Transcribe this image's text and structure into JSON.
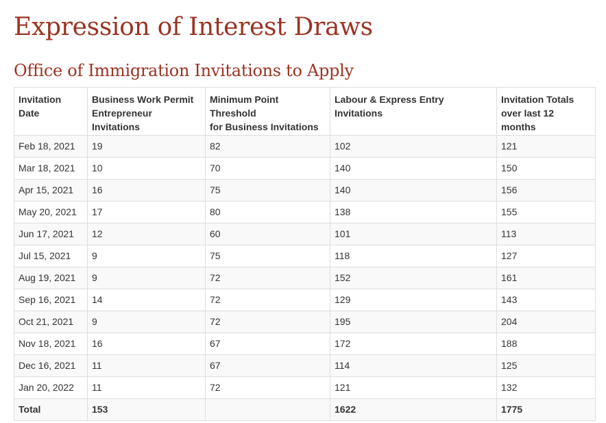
{
  "heading": "Expression of Interest Draws",
  "subheading": "Office of Immigration Invitations to Apply",
  "table": {
    "columns": [
      [
        "Invitation",
        "Date"
      ],
      [
        "Business Work Permit",
        "Entrepreneur",
        "Invitations"
      ],
      [
        "Minimum Point",
        "Threshold",
        "for Business Invitations"
      ],
      [
        "Labour & Express Entry",
        "Invitations"
      ],
      [
        "Invitation Totals",
        "over last 12",
        "months"
      ]
    ],
    "rows": [
      [
        "Feb 18, 2021",
        "19",
        "82",
        "102",
        "121"
      ],
      [
        "Mar 18, 2021",
        "10",
        "70",
        "140",
        "150"
      ],
      [
        "Apr 15, 2021",
        "16",
        "75",
        "140",
        "156"
      ],
      [
        "May 20, 2021",
        "17",
        "80",
        "138",
        "155"
      ],
      [
        "Jun 17, 2021",
        "12",
        "60",
        "101",
        "113"
      ],
      [
        "Jul 15, 2021",
        "9",
        "75",
        "118",
        "127"
      ],
      [
        "Aug 19, 2021",
        "9",
        "72",
        "152",
        "161"
      ],
      [
        "Sep 16, 2021",
        "14",
        "72",
        "129",
        "143"
      ],
      [
        "Oct 21, 2021",
        "9",
        "72",
        "195",
        "204"
      ],
      [
        "Nov 18, 2021",
        "16",
        "67",
        "172",
        "188"
      ],
      [
        "Dec 16, 2021",
        "11",
        "67",
        "114",
        "125"
      ],
      [
        "Jan 20, 2022",
        "11",
        "72",
        "121",
        "132"
      ]
    ],
    "total": [
      "Total",
      "153",
      "",
      "1622",
      "1775"
    ]
  },
  "colors": {
    "heading": "#9b3322",
    "text": "#333333",
    "border": "#dddddd",
    "stripe": "#f9f9f9"
  }
}
